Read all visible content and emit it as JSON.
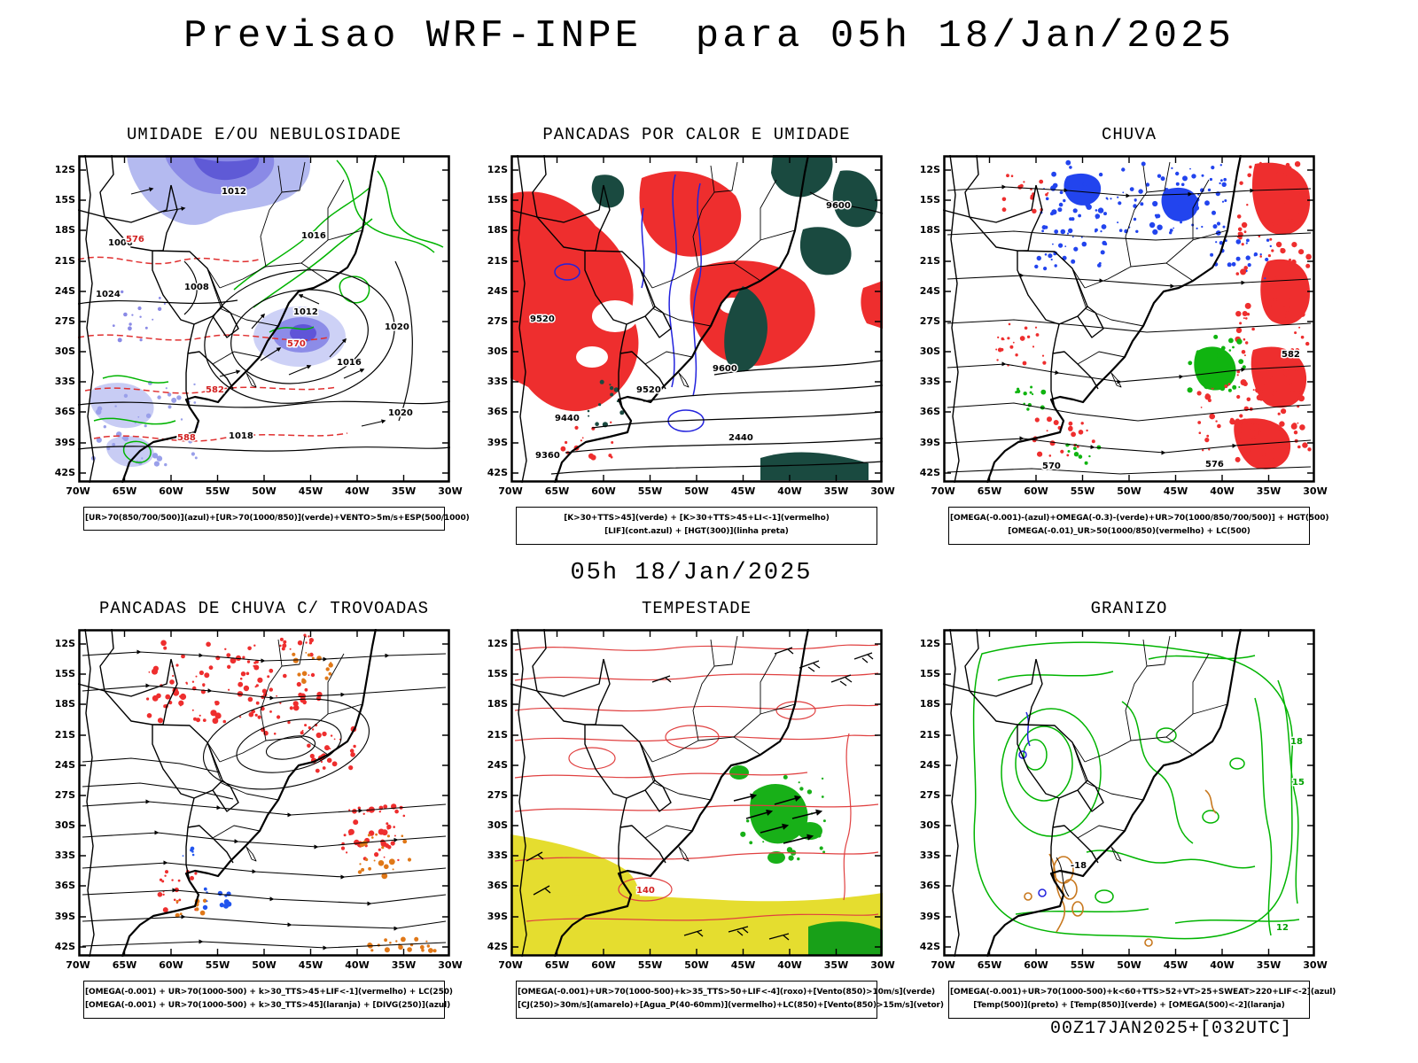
{
  "title": "Previsao WRF-INPE  para 05h 18/Jan/2025",
  "valid_time_label": "05h 18/Jan/2025",
  "run_info": "00Z17JAN2025+[032UTC]",
  "map_extent": {
    "lon_left": "70W",
    "lon_right": "30W",
    "lat_top": "12S",
    "lat_bottom": "42S"
  },
  "axis": {
    "lat": [
      "12S",
      "15S",
      "18S",
      "21S",
      "24S",
      "27S",
      "30S",
      "33S",
      "36S",
      "39S",
      "42S"
    ],
    "lon": [
      "70W",
      "65W",
      "60W",
      "55W",
      "50W",
      "45W",
      "40W",
      "35W",
      "30W"
    ]
  },
  "legend_colors": {
    "azul": "#2222dd",
    "verde": "#00b400",
    "vermelho": "#ee2e2e",
    "laranja": "#e07818",
    "amarelo": "#e5dd2f",
    "roxo": "#6655dd",
    "preto": "#000000",
    "verde_escuro": "#1a4a40"
  },
  "panels": [
    {
      "id": "umidade",
      "title": "UMIDADE E/OU NEBULOSIDADE",
      "caption": [
        "[UR>70(850/700/500)](azul)+[UR>70(1000/850)](verde)+VENTO>5m/s+ESP(500/1000)"
      ],
      "contour_labels": [
        {
          "text": "1006"
        },
        {
          "text": "1012"
        },
        {
          "text": "1008"
        },
        {
          "text": "1016"
        },
        {
          "text": "1012"
        },
        {
          "text": "1016"
        },
        {
          "text": "1020"
        },
        {
          "text": "1024"
        },
        {
          "text": "1018"
        },
        {
          "text": "1020"
        },
        {
          "text": "570"
        },
        {
          "text": "576"
        },
        {
          "text": "582"
        },
        {
          "text": "588"
        }
      ]
    },
    {
      "id": "pancadas-calor",
      "title": "PANCADAS POR CALOR E UMIDADE",
      "caption": [
        "[K>30+TTS>45](verde) + [K>30+TTS>45+LI<-1](vermelho)",
        "[LIF](cont.azul) + [HGT(300)](linha preta)"
      ],
      "contour_labels": [
        {
          "text": "9600"
        },
        {
          "text": "9600"
        },
        {
          "text": "9520"
        },
        {
          "text": "9520"
        },
        {
          "text": "9440"
        },
        {
          "text": "9360"
        },
        {
          "text": "2440"
        }
      ]
    },
    {
      "id": "chuva",
      "title": "CHUVA",
      "caption": [
        "[OMEGA(-0.001)-(azul)+OMEGA(-0.3)-(verde)+UR>70(1000/850/700/500)] + HGT(500)",
        "[OMEGA(-0.01)_UR>50(1000/850)(vermelho) + LC(500)"
      ],
      "contour_labels": [
        {
          "text": "582"
        },
        {
          "text": "576"
        },
        {
          "text": "570"
        }
      ]
    },
    {
      "id": "trovoadas",
      "title": "PANCADAS DE CHUVA C/ TROVOADAS",
      "caption": [
        "[OMEGA(-0.001) + UR>70(1000-500) + k>30_TTS>45+LIF<-1](vermelho) + LC(250)",
        "[OMEGA(-0.001) + UR>70(1000-500) + k>30_TTS>45](laranja) + [DIVG(250)](azul)"
      ],
      "contour_labels": []
    },
    {
      "id": "tempestade",
      "title": "TEMPESTADE",
      "caption": [
        "[OMEGA(-0.001)+UR>70(1000-500)+k>35_TTS>50+LIF<-4](roxo)+[Vento(850)>10m/s](verde)",
        "[CJ(250)>30m/s](amarelo)+[Agua_P(40-60mm)](vermelho)+LC(850)+[Vento(850)>15m/s](vetor)"
      ],
      "contour_labels": [
        {
          "text": "140"
        }
      ]
    },
    {
      "id": "granizo",
      "title": "GRANIZO",
      "caption": [
        "[OMEGA(-0.001)+UR>70(1000-500)+k<60+TTS>52+VT>25+SWEAT>220+LIF<-2](azul)",
        "[Temp(500)](preto) + [Temp(850)](verde) + [OMEGA(500)<-2](laranja)"
      ],
      "contour_labels": [
        {
          "text": "18"
        },
        {
          "text": "15"
        },
        {
          "text": "12"
        },
        {
          "text": "-18"
        }
      ]
    }
  ]
}
